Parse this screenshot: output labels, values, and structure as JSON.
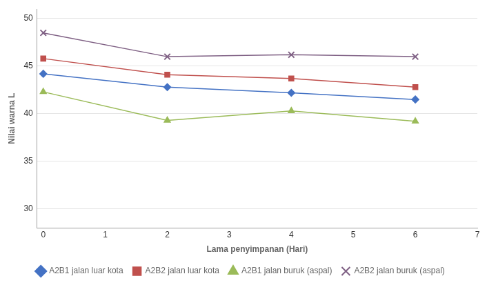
{
  "chart_data": {
    "type": "line",
    "x": [
      0,
      2,
      4,
      6
    ],
    "series": [
      {
        "name": "A2B1 jalan luar kota",
        "color": "#4472C4",
        "marker": "diamond",
        "values": [
          44.2,
          42.8,
          42.2,
          41.5
        ]
      },
      {
        "name": "A2B2 jalan luar kota",
        "color": "#C0504D",
        "marker": "square",
        "values": [
          45.8,
          44.1,
          43.7,
          42.8
        ]
      },
      {
        "name": "A2B1 jalan buruk (aspal)",
        "color": "#9BBB59",
        "marker": "triangle",
        "values": [
          42.3,
          39.3,
          40.3,
          39.2
        ]
      },
      {
        "name": "A2B2 jalan buruk (aspal)",
        "color": "#7F6084",
        "marker": "x",
        "values": [
          48.5,
          46.0,
          46.2,
          46.0
        ]
      }
    ],
    "x_label": "Lama penyimpanan (Hari)",
    "y_label": "Nilai warna L",
    "xlim": [
      -0.1,
      7
    ],
    "ylim": [
      28,
      51
    ],
    "xticks": [
      0,
      1,
      2,
      3,
      4,
      5,
      6,
      7
    ],
    "yticks": [
      30,
      35,
      40,
      45,
      50
    ],
    "grid": "y",
    "legend": "bottom"
  }
}
